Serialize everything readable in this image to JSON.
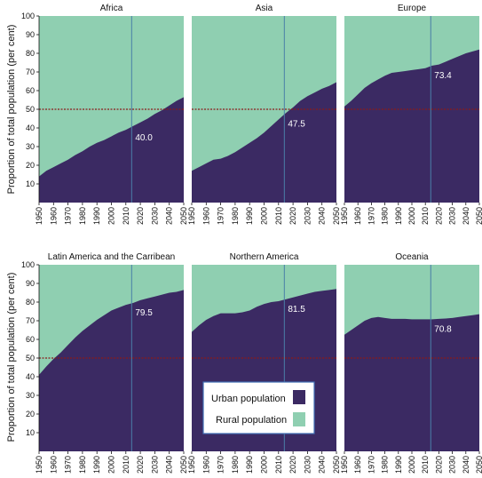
{
  "colors": {
    "urban": "#3b2a63",
    "rural": "#8fcfb1",
    "threshold": "#8b1a1a",
    "marker": "#4a7fa8",
    "legend_border": "#3f6fb5"
  },
  "ylabel": "Proportion of total population (per cent)",
  "legend": [
    {
      "label": "Urban population",
      "color": "#3b2a63"
    },
    {
      "label": "Rural population",
      "color": "#8fcfb1"
    }
  ],
  "chart_data": [
    {
      "type": "area",
      "title": "Africa",
      "x": [
        1950,
        1955,
        1960,
        1965,
        1970,
        1975,
        1980,
        1985,
        1990,
        1995,
        2000,
        2005,
        2010,
        2015,
        2020,
        2025,
        2030,
        2035,
        2040,
        2045,
        2050
      ],
      "urban": [
        14,
        17,
        19,
        21,
        23,
        25.5,
        27.5,
        30,
        32,
        33.5,
        35.5,
        37.5,
        39,
        41,
        43,
        45,
        47.5,
        49.5,
        52,
        54.5,
        56.5
      ],
      "marker_x": 2014,
      "marker_label": "40.0",
      "threshold": 50,
      "ylim": [
        0,
        100
      ],
      "ticks_y": [
        10,
        20,
        30,
        40,
        50,
        60,
        70,
        80,
        90,
        100
      ]
    },
    {
      "type": "area",
      "title": "Asia",
      "x": [
        1950,
        1955,
        1960,
        1965,
        1970,
        1975,
        1980,
        1985,
        1990,
        1995,
        2000,
        2005,
        2010,
        2015,
        2020,
        2025,
        2030,
        2035,
        2040,
        2045,
        2050
      ],
      "urban": [
        17,
        19,
        21,
        23,
        23.5,
        25,
        27,
        29.5,
        32,
        34.5,
        37.5,
        41,
        44.5,
        48,
        51,
        54.5,
        57,
        59,
        61,
        62.5,
        64.5
      ],
      "marker_x": 2014,
      "marker_label": "47.5",
      "threshold": 50,
      "ylim": [
        0,
        100
      ]
    },
    {
      "type": "area",
      "title": "Europe",
      "x": [
        1950,
        1955,
        1960,
        1965,
        1970,
        1975,
        1980,
        1985,
        1990,
        1995,
        2000,
        2005,
        2010,
        2015,
        2020,
        2025,
        2030,
        2035,
        2040,
        2045,
        2050
      ],
      "urban": [
        51.5,
        54.5,
        58,
        61.5,
        64,
        66,
        68,
        69.5,
        70,
        70.5,
        71,
        71.5,
        72,
        73.4,
        74,
        75.5,
        77,
        78.5,
        80,
        81,
        82
      ],
      "marker_x": 2014,
      "marker_label": "73.4",
      "threshold": 50,
      "ylim": [
        0,
        100
      ]
    },
    {
      "type": "area",
      "title": "Latin America and the Carribean",
      "x": [
        1950,
        1955,
        1960,
        1965,
        1970,
        1975,
        1980,
        1985,
        1990,
        1995,
        2000,
        2005,
        2010,
        2015,
        2020,
        2025,
        2030,
        2035,
        2040,
        2045,
        2050
      ],
      "urban": [
        41,
        45.5,
        49.5,
        53,
        57,
        61,
        64.5,
        67.5,
        70.5,
        73,
        75.5,
        77,
        78.5,
        79.5,
        81,
        82,
        83,
        84,
        85,
        85.5,
        86.5
      ],
      "marker_x": 2014,
      "marker_label": "79.5",
      "threshold": 50,
      "ylim": [
        0,
        100
      ],
      "ticks_y": [
        10,
        20,
        30,
        40,
        50,
        60,
        70,
        80,
        90,
        100
      ]
    },
    {
      "type": "area",
      "title": "Northern America",
      "x": [
        1950,
        1955,
        1960,
        1965,
        1970,
        1975,
        1980,
        1985,
        1990,
        1995,
        2000,
        2005,
        2010,
        2015,
        2020,
        2025,
        2030,
        2035,
        2040,
        2045,
        2050
      ],
      "urban": [
        64,
        67.5,
        70.5,
        72.5,
        74,
        74,
        74,
        74.5,
        75.5,
        77.5,
        79,
        80,
        80.5,
        81.5,
        82.5,
        83.5,
        84.5,
        85.5,
        86,
        86.5,
        87
      ],
      "marker_x": 2014,
      "marker_label": "81.5",
      "threshold": 50,
      "ylim": [
        0,
        100
      ]
    },
    {
      "type": "area",
      "title": "Oceania",
      "x": [
        1950,
        1955,
        1960,
        1965,
        1970,
        1975,
        1980,
        1985,
        1990,
        1995,
        2000,
        2005,
        2010,
        2015,
        2020,
        2025,
        2030,
        2035,
        2040,
        2045,
        2050
      ],
      "urban": [
        62.5,
        65,
        67.5,
        70,
        71.5,
        72,
        71.5,
        71,
        71,
        71,
        70.8,
        70.8,
        70.8,
        70.8,
        71,
        71.2,
        71.5,
        72,
        72.5,
        73,
        73.5
      ],
      "marker_x": 2014,
      "marker_label": "70.8",
      "threshold": 50,
      "ylim": [
        0,
        100
      ]
    }
  ],
  "ticks_x": [
    "1950",
    "1960",
    "1970",
    "1980",
    "1990",
    "2000",
    "2010",
    "2020",
    "2030",
    "2040",
    "2050"
  ]
}
